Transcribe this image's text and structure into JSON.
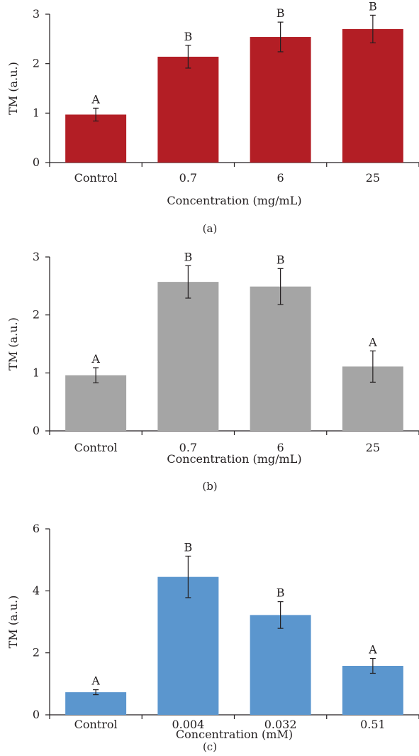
{
  "chart_data": [
    {
      "type": "bar",
      "panel_label": "(a)",
      "categories": [
        "Control",
        "0.7",
        "6",
        "25"
      ],
      "values": [
        0.97,
        2.14,
        2.54,
        2.7
      ],
      "errors": [
        0.13,
        0.23,
        0.3,
        0.28
      ],
      "significance": [
        "A",
        "B",
        "B",
        "B"
      ],
      "xlabel": "Concentration (mg/mL)",
      "ylabel": "TM (a.u.)",
      "ylim": [
        0,
        3
      ],
      "yticks": [
        "0",
        "1",
        "2",
        "3"
      ],
      "color": "#b31e25",
      "grid": false
    },
    {
      "type": "bar",
      "panel_label": "(b)",
      "categories": [
        "Control",
        "0.7",
        "6",
        "25"
      ],
      "values": [
        0.96,
        2.57,
        2.49,
        1.11
      ],
      "errors": [
        0.13,
        0.28,
        0.31,
        0.27
      ],
      "significance": [
        "A",
        "B",
        "B",
        "A"
      ],
      "xlabel": "Concentration (mg/mL)",
      "ylabel": "TM (a.u.)",
      "ylim": [
        0,
        3
      ],
      "yticks": [
        "0",
        "1",
        "2",
        "3"
      ],
      "color": "#a5a5a5",
      "grid": false
    },
    {
      "type": "bar",
      "panel_label": "(c)",
      "categories": [
        "Control",
        "0.004",
        "0.032",
        "0.51"
      ],
      "values": [
        0.73,
        4.45,
        3.22,
        1.58
      ],
      "errors": [
        0.08,
        0.67,
        0.43,
        0.24
      ],
      "significance": [
        "A",
        "B",
        "B",
        "A"
      ],
      "xlabel": "Concentration (mM)",
      "ylabel": "TM (a.u.)",
      "ylim": [
        0,
        6
      ],
      "yticks": [
        "0",
        "2",
        "4",
        "6"
      ],
      "color": "#5b96ce",
      "grid": false
    }
  ]
}
